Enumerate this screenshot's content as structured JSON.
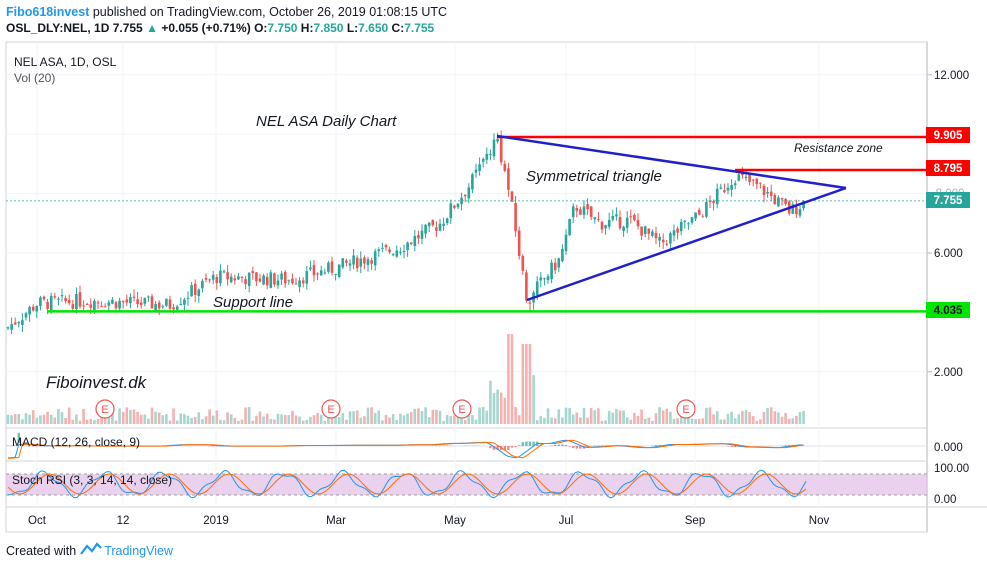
{
  "header": {
    "author": "Fibo618invest",
    "published": "published on TradingView.com, October 26, 2019 01:08:15 UTC",
    "symbol": "OSL_DLY:NEL, 1D",
    "last": "7.755",
    "change": "+0.055 (+0.71%)",
    "o_label": "O:",
    "o": "7.750",
    "h_label": "H:",
    "h": "7.850",
    "l_label": "L:",
    "l": "7.650",
    "c_label": "C:",
    "c": "7.755"
  },
  "legend": {
    "title": "NEL ASA, 1D, OSL",
    "vol": "Vol (20)"
  },
  "annotations": {
    "chart_title": "NEL ASA Daily Chart",
    "triangle": "Symmetrical triangle",
    "resistance": "Resistance zone",
    "support": "Support line",
    "watermark": "Fiboinvest.dk"
  },
  "price_labels": {
    "resistance_high": "9.905",
    "resistance_low": "8.795",
    "current": "7.755",
    "support": "4.035",
    "hidden_tick": "8.000"
  },
  "indicators": {
    "macd": "MACD (12, 26, close, 9)",
    "macd_tick": "0.000",
    "stoch": "Stoch RSI (3, 3, 14, 14, close)",
    "stoch_top": "100.00",
    "stoch_bottom": "0.00"
  },
  "earnings_marker": "E",
  "footer": {
    "created": "Created with",
    "brand": "TradingView"
  },
  "colors": {
    "up": "#26a69a",
    "down": "#ef5350",
    "resistance": "#ff0000",
    "support": "#00e600",
    "triangle": "#1f1fcc",
    "macd": "#2196f3",
    "signal": "#ff6d00",
    "stoch_fill": "#e1bee7",
    "current": "#26a69a"
  },
  "chart_data": {
    "type": "candlestick",
    "x_ticks": [
      "Oct",
      "12",
      "2019",
      "Mar",
      "May",
      "Jul",
      "Sep",
      "Nov"
    ],
    "y_ticks": [
      12.0,
      10.0,
      8.0,
      6.0,
      4.0,
      2.0
    ],
    "y_tick_labels": [
      "12.000",
      "",
      "",
      "6.000",
      "",
      "2.000"
    ],
    "ylim": [
      0,
      13
    ],
    "levels": {
      "resistance_high": 9.905,
      "resistance_low": 8.795,
      "support": 4.035,
      "current": 7.755
    },
    "trend_keypoints_price": [
      [
        "Sep-2018",
        3.45
      ],
      [
        "Oct-2018",
        4.3
      ],
      [
        "Nov-2018",
        4.4
      ],
      [
        "Dec-2018",
        4.25
      ],
      [
        "Jan-2019",
        5.2
      ],
      [
        "Feb-2019",
        5.1
      ],
      [
        "Mar-2019",
        5.5
      ],
      [
        "Apr-2019",
        6.2
      ],
      [
        "Apr-2019",
        7.0
      ],
      [
        "May-2019",
        8.3
      ],
      [
        "May-2019",
        9.9
      ],
      [
        "May-2019",
        7.9
      ],
      [
        "Jun-2019",
        4.4
      ],
      [
        "Jun-2019",
        5.8
      ],
      [
        "Jul-2019",
        7.6
      ],
      [
        "Jul-2019",
        7.0
      ],
      [
        "Aug-2019",
        7.1
      ],
      [
        "Aug-2019",
        6.3
      ],
      [
        "Sep-2019",
        7.3
      ],
      [
        "Sep-2019",
        8.6
      ],
      [
        "Oct-2019",
        8.2
      ],
      [
        "Oct-2019",
        7.4
      ],
      [
        "Oct-2019",
        7.755
      ]
    ],
    "earnings_months": [
      "Nov-2018",
      "Feb-2019",
      "Apr-2019",
      "Aug-2019"
    ]
  }
}
